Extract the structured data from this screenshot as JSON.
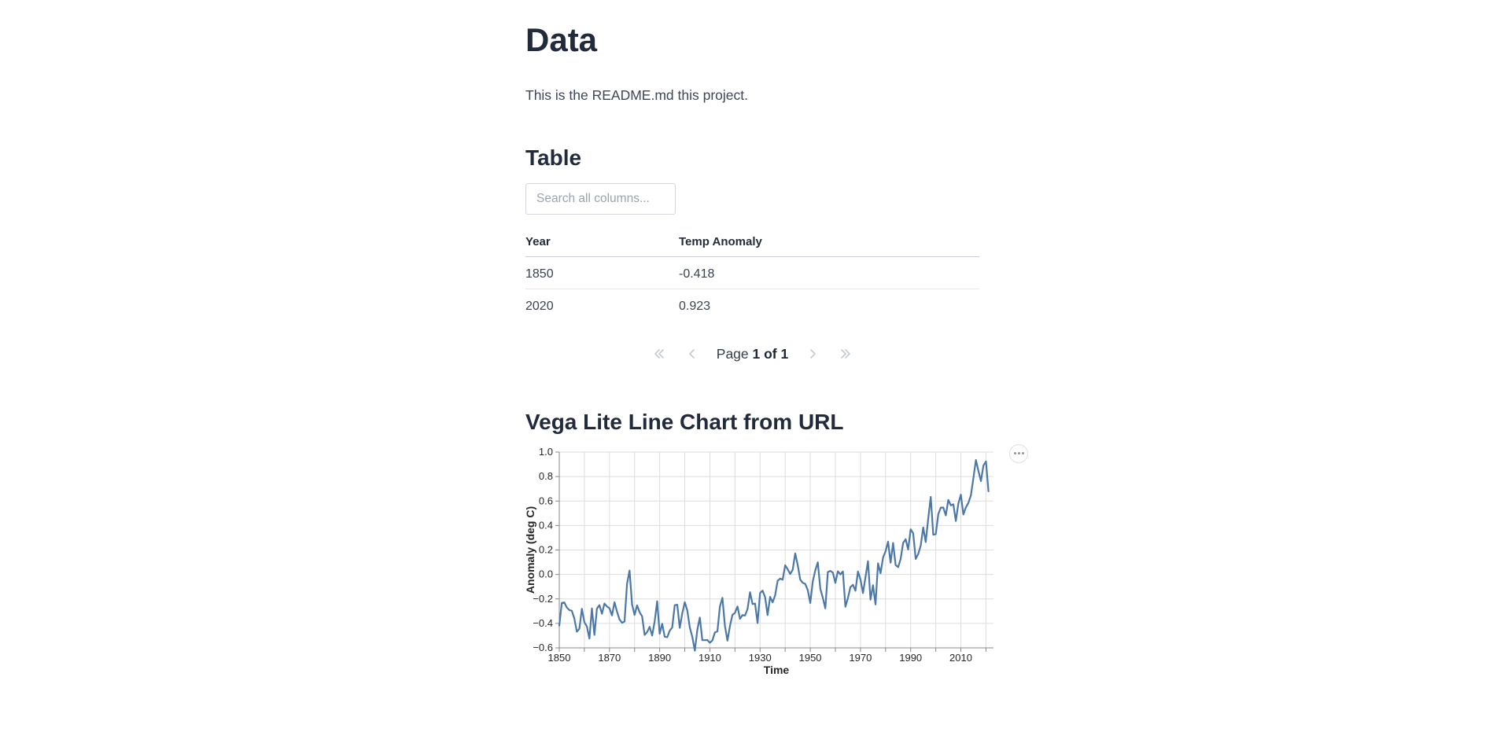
{
  "page": {
    "title": "Data",
    "readme": "This is the README.md this project."
  },
  "table": {
    "heading": "Table",
    "search_placeholder": "Search all columns...",
    "columns": [
      "Year",
      "Temp Anomaly"
    ],
    "rows": [
      [
        "1850",
        "-0.418"
      ],
      [
        "2020",
        "0.923"
      ]
    ],
    "pagination": {
      "label": "Page ",
      "value": "1 of 1",
      "buttons": [
        "first-page",
        "previous-page",
        "next-page",
        "last-page"
      ]
    }
  },
  "chart_section": {
    "heading": "Vega Lite Line Chart from URL",
    "menu_icon": "ellipsis-icon"
  },
  "chart_data": {
    "type": "line",
    "title": "",
    "xlabel": "Time",
    "ylabel": "Anomaly (deg C)",
    "xlim": [
      1850,
      2023
    ],
    "ylim": [
      -0.6,
      1.0
    ],
    "x_grid_step": 10,
    "y_tick_step": 0.2,
    "x_ticks_labeled": [
      1850,
      1870,
      1890,
      1910,
      1930,
      1950,
      1970,
      1990,
      2010
    ],
    "grid": true,
    "legend": false,
    "line_color": "#4c78a8",
    "grid_color": "#dddddd",
    "axis_color": "#888888",
    "label_color": "#262626",
    "series": [
      {
        "name": "Temp Anomaly",
        "x": [
          1850,
          1851,
          1852,
          1853,
          1854,
          1855,
          1856,
          1857,
          1858,
          1859,
          1860,
          1861,
          1862,
          1863,
          1864,
          1865,
          1866,
          1867,
          1868,
          1869,
          1870,
          1871,
          1872,
          1873,
          1874,
          1875,
          1876,
          1877,
          1878,
          1879,
          1880,
          1881,
          1882,
          1883,
          1884,
          1885,
          1886,
          1887,
          1888,
          1889,
          1890,
          1891,
          1892,
          1893,
          1894,
          1895,
          1896,
          1897,
          1898,
          1899,
          1900,
          1901,
          1902,
          1903,
          1904,
          1905,
          1906,
          1907,
          1908,
          1909,
          1910,
          1911,
          1912,
          1913,
          1914,
          1915,
          1916,
          1917,
          1918,
          1919,
          1920,
          1921,
          1922,
          1923,
          1924,
          1925,
          1926,
          1927,
          1928,
          1929,
          1930,
          1931,
          1932,
          1933,
          1934,
          1935,
          1936,
          1937,
          1938,
          1939,
          1940,
          1941,
          1942,
          1943,
          1944,
          1945,
          1946,
          1947,
          1948,
          1949,
          1950,
          1951,
          1952,
          1953,
          1954,
          1955,
          1956,
          1957,
          1958,
          1959,
          1960,
          1961,
          1962,
          1963,
          1964,
          1965,
          1966,
          1967,
          1968,
          1969,
          1970,
          1971,
          1972,
          1973,
          1974,
          1975,
          1976,
          1977,
          1978,
          1979,
          1980,
          1981,
          1982,
          1983,
          1984,
          1985,
          1986,
          1987,
          1988,
          1989,
          1990,
          1991,
          1992,
          1993,
          1994,
          1995,
          1996,
          1997,
          1998,
          1999,
          2000,
          2001,
          2002,
          2003,
          2004,
          2005,
          2006,
          2007,
          2008,
          2009,
          2010,
          2011,
          2012,
          2013,
          2014,
          2015,
          2016,
          2017,
          2018,
          2019,
          2020,
          2021
        ],
        "y": [
          -0.418,
          -0.233,
          -0.229,
          -0.27,
          -0.291,
          -0.297,
          -0.36,
          -0.468,
          -0.444,
          -0.281,
          -0.39,
          -0.425,
          -0.524,
          -0.278,
          -0.494,
          -0.279,
          -0.251,
          -0.321,
          -0.238,
          -0.262,
          -0.276,
          -0.335,
          -0.227,
          -0.304,
          -0.368,
          -0.395,
          -0.384,
          -0.075,
          0.032,
          -0.245,
          -0.331,
          -0.252,
          -0.309,
          -0.342,
          -0.494,
          -0.471,
          -0.428,
          -0.499,
          -0.385,
          -0.219,
          -0.485,
          -0.403,
          -0.509,
          -0.513,
          -0.46,
          -0.433,
          -0.251,
          -0.247,
          -0.436,
          -0.318,
          -0.227,
          -0.294,
          -0.433,
          -0.51,
          -0.623,
          -0.453,
          -0.352,
          -0.537,
          -0.537,
          -0.536,
          -0.558,
          -0.539,
          -0.474,
          -0.465,
          -0.262,
          -0.191,
          -0.421,
          -0.541,
          -0.421,
          -0.33,
          -0.314,
          -0.262,
          -0.363,
          -0.332,
          -0.336,
          -0.283,
          -0.145,
          -0.242,
          -0.238,
          -0.397,
          -0.152,
          -0.132,
          -0.186,
          -0.332,
          -0.183,
          -0.228,
          -0.171,
          -0.052,
          -0.034,
          -0.043,
          0.075,
          0.042,
          0.004,
          0.038,
          0.172,
          0.077,
          -0.042,
          -0.068,
          -0.077,
          -0.128,
          -0.233,
          -0.056,
          0.033,
          0.099,
          -0.117,
          -0.191,
          -0.277,
          0.02,
          0.029,
          0.015,
          -0.069,
          0.026,
          0.0,
          0.024,
          -0.264,
          -0.193,
          -0.103,
          -0.085,
          -0.133,
          0.024,
          -0.041,
          -0.152,
          -0.023,
          0.109,
          -0.206,
          -0.088,
          -0.245,
          0.091,
          0.01,
          0.138,
          0.19,
          0.268,
          0.096,
          0.257,
          0.077,
          0.06,
          0.126,
          0.257,
          0.288,
          0.204,
          0.369,
          0.337,
          0.127,
          0.167,
          0.236,
          0.384,
          0.265,
          0.457,
          0.634,
          0.325,
          0.329,
          0.492,
          0.546,
          0.547,
          0.483,
          0.609,
          0.565,
          0.573,
          0.437,
          0.58,
          0.652,
          0.49,
          0.548,
          0.585,
          0.646,
          0.789,
          0.935,
          0.845,
          0.763,
          0.891,
          0.923,
          0.68
        ]
      }
    ]
  }
}
